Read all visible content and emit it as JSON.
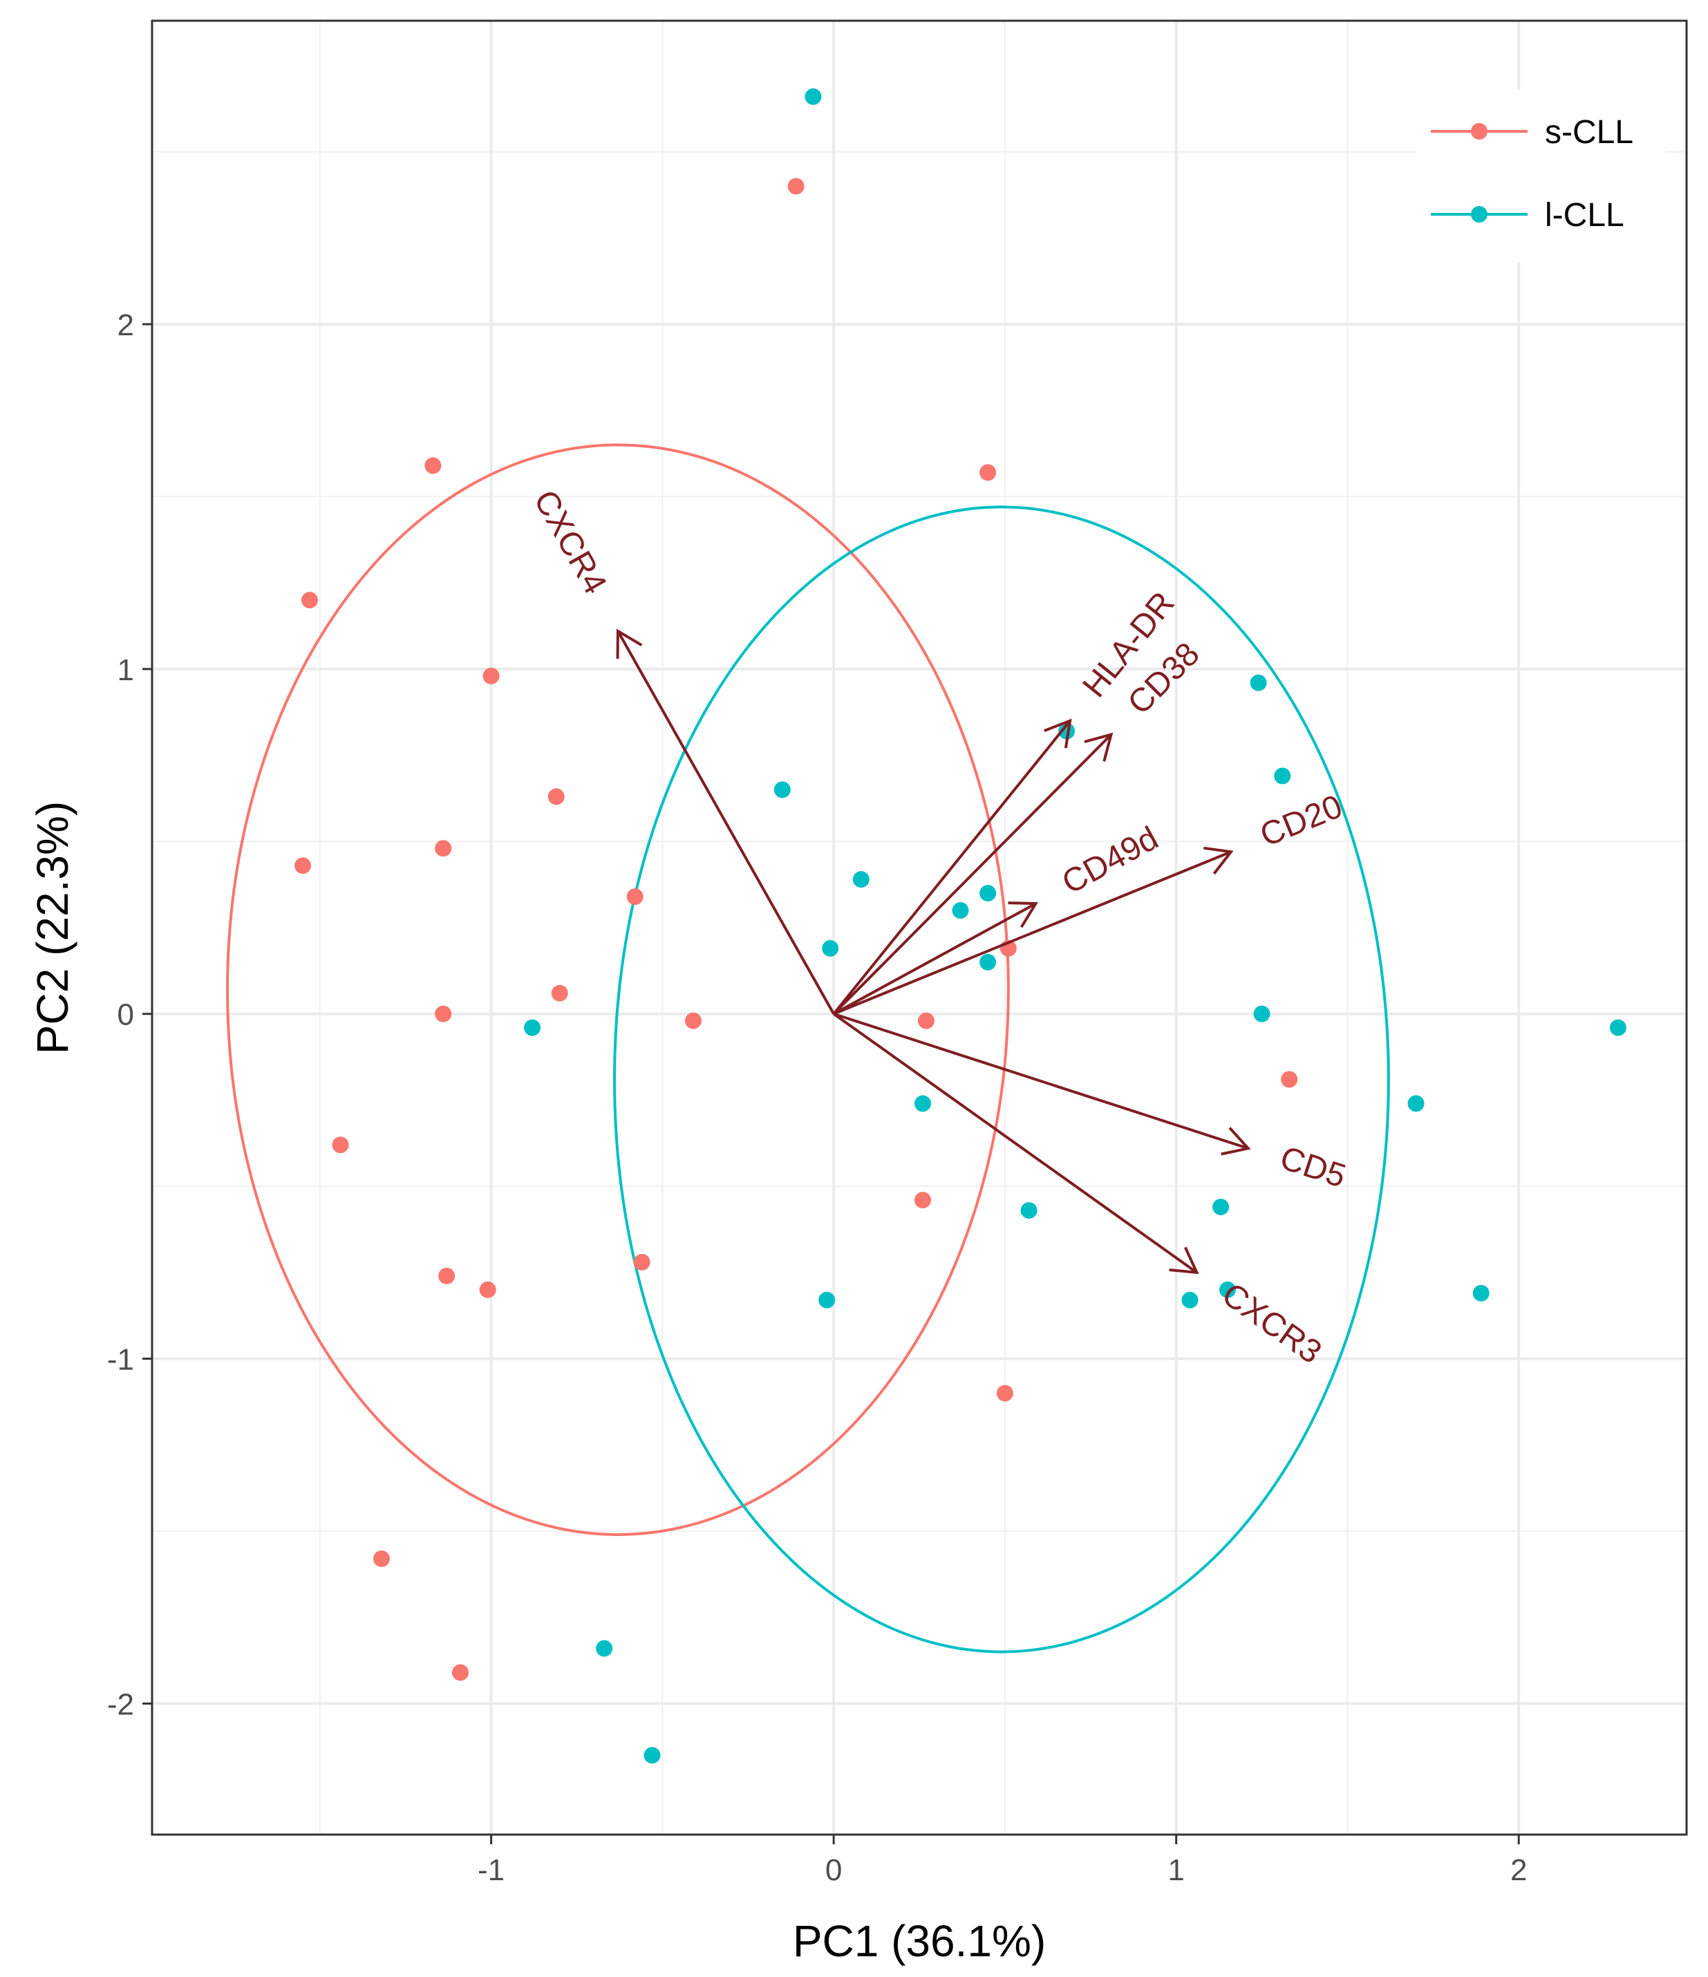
{
  "chart_data": {
    "type": "scatter",
    "subtype": "pca-biplot",
    "xlabel": "PC1 (36.1%)",
    "ylabel": "PC2 (22.3%)",
    "xlim": [
      -1.99,
      2.49
    ],
    "ylim": [
      -2.38,
      2.88
    ],
    "xticks": [
      -1,
      0,
      1,
      2
    ],
    "yticks": [
      -2,
      -1,
      0,
      1,
      2
    ],
    "xtick_labels": [
      "-1",
      "0",
      "1",
      "2"
    ],
    "ytick_labels": [
      "-2",
      "-1",
      "0",
      "1",
      "2"
    ],
    "grid": true,
    "legend_position": "top-right",
    "series": [
      {
        "name": "s-CLL",
        "color": "#F8766D",
        "points": [
          [
            -0.11,
            2.4
          ],
          [
            -1.17,
            1.59
          ],
          [
            0.45,
            1.57
          ],
          [
            -1.53,
            1.2
          ],
          [
            -1.0,
            0.98
          ],
          [
            -0.81,
            0.63
          ],
          [
            -1.14,
            0.48
          ],
          [
            -1.55,
            0.43
          ],
          [
            -0.58,
            0.34
          ],
          [
            0.51,
            0.19
          ],
          [
            -0.8,
            0.06
          ],
          [
            -1.14,
            0.0
          ],
          [
            -0.41,
            -0.02
          ],
          [
            0.27,
            -0.02
          ],
          [
            1.33,
            -0.19
          ],
          [
            -1.44,
            -0.38
          ],
          [
            0.26,
            -0.54
          ],
          [
            -0.56,
            -0.72
          ],
          [
            -1.13,
            -0.76
          ],
          [
            -1.01,
            -0.8
          ],
          [
            0.5,
            -1.1
          ],
          [
            -1.32,
            -1.58
          ],
          [
            -1.09,
            -1.91
          ]
        ],
        "ellipse": {
          "cx": -0.63,
          "cy": 0.07,
          "rx": 1.14,
          "ry": 1.58
        }
      },
      {
        "name": "l-CLL",
        "color": "#00BFC4",
        "points": [
          [
            -0.06,
            2.66
          ],
          [
            1.24,
            0.96
          ],
          [
            0.68,
            0.82
          ],
          [
            1.31,
            0.69
          ],
          [
            -0.15,
            0.65
          ],
          [
            0.08,
            0.39
          ],
          [
            0.45,
            0.35
          ],
          [
            0.37,
            0.3
          ],
          [
            -0.01,
            0.19
          ],
          [
            0.45,
            0.15
          ],
          [
            1.25,
            0.0
          ],
          [
            2.29,
            -0.04
          ],
          [
            -0.88,
            -0.04
          ],
          [
            0.26,
            -0.26
          ],
          [
            1.7,
            -0.26
          ],
          [
            1.13,
            -0.56
          ],
          [
            0.57,
            -0.57
          ],
          [
            -0.02,
            -0.83
          ],
          [
            1.04,
            -0.83
          ],
          [
            1.15,
            -0.8
          ],
          [
            1.89,
            -0.81
          ],
          [
            -0.67,
            -1.84
          ],
          [
            -0.53,
            -2.15
          ]
        ],
        "ellipse": {
          "cx": 0.49,
          "cy": -0.19,
          "rx": 1.13,
          "ry": 1.66
        }
      }
    ],
    "loadings": {
      "color": "#7F1E22",
      "vectors": [
        {
          "name": "CXCR4",
          "x": -0.63,
          "y": 1.11
        },
        {
          "name": "HLA-DR",
          "x": 0.69,
          "y": 0.85
        },
        {
          "name": "CD38",
          "x": 0.81,
          "y": 0.81
        },
        {
          "name": "CD20",
          "x": 1.16,
          "y": 0.47
        },
        {
          "name": "CD49d",
          "x": 0.59,
          "y": 0.32
        },
        {
          "name": "CD5",
          "x": 1.21,
          "y": -0.39
        },
        {
          "name": "CXCR3",
          "x": 1.06,
          "y": -0.75
        }
      ]
    }
  }
}
